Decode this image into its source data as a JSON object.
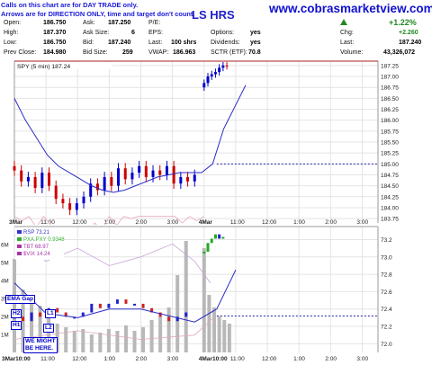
{
  "site": {
    "url": "www.cobrasmarketview.com"
  },
  "ticker_partial": "LS HRS",
  "notice": {
    "line1": "Calls on this chart are for DAY TRADE only.",
    "line2": "Arrows are for DIRECTION ONLY, time and target don't count."
  },
  "quote": {
    "open_label": "Open:",
    "open": "186.750",
    "high_label": "High:",
    "high": "187.370",
    "low_label": "Low:",
    "low": "186.750",
    "prev_close_label": "Prev Close:",
    "prev_close": "184.980",
    "ask_label": "Ask:",
    "ask": "187.250",
    "ask_size_label": "Ask Size:",
    "ask_size": "6",
    "bid_label": "Bid:",
    "bid": "187.240",
    "bid_size_label": "Bid Size:",
    "bid_size": "259",
    "pe_label": "P/E:",
    "pe": "",
    "eps_label": "EPS:",
    "eps": "",
    "last_label": "Last:",
    "last_size": "100 shrs",
    "vwap_label": "VWAP:",
    "vwap": "186.963",
    "options_label": "Options:",
    "options": "yes",
    "dividends_label": "Dividends:",
    "dividends": "yes",
    "sctr_label": "SCTR (ETF):",
    "sctr": "70.8",
    "pct_change": "+1.22%",
    "chg_label": "Chg:",
    "chg": "+2.260",
    "last2_label": "Last:",
    "last": "187.240",
    "volume_label": "Volume:",
    "volume": "43,326,072",
    "up_color": "#228822"
  },
  "chart_data": [
    {
      "type": "line",
      "legend": "SPY (5 min) 187.24",
      "y_ticks": [
        "187.25",
        "187.00",
        "186.75",
        "186.50",
        "186.25",
        "186.00",
        "185.75",
        "185.50",
        "185.25",
        "185.00",
        "184.75",
        "184.50",
        "184.25",
        "184.00",
        "183.75"
      ],
      "ylim": [
        183.65,
        187.35
      ],
      "x_ticks": [
        "3Mar",
        "11:00",
        "12:00",
        "1:00",
        "2:00",
        "3:00",
        "4Mar",
        "11:00",
        "12:00",
        "1:00",
        "2:00",
        "3:00"
      ],
      "time_day": [
        0,
        0.5,
        1,
        1.5,
        2,
        2.5,
        3,
        3.5,
        4,
        4.5,
        5,
        5.5,
        6
      ],
      "close_day1": [
        184.85,
        184.6,
        184.7,
        184.45,
        184.8,
        184.5,
        184.2,
        184.1,
        183.95,
        184.1,
        184.25,
        184.55,
        184.4,
        184.7,
        184.5,
        184.9,
        184.65,
        184.8,
        184.95,
        184.7,
        184.85,
        184.75,
        184.95,
        184.55,
        184.7,
        184.6,
        184.75
      ],
      "close_day2": [
        186.85,
        187.0,
        187.05,
        187.1,
        187.2,
        187.25,
        187.24
      ],
      "ma_series": [
        186.5,
        186.0,
        185.6,
        185.2,
        184.95,
        184.8,
        184.65,
        184.5,
        184.4,
        184.35,
        184.4,
        184.5,
        184.6,
        184.7,
        184.75,
        184.8,
        184.8,
        184.8,
        185.0,
        185.8,
        186.3,
        186.8
      ],
      "ref_level": 185.0,
      "colors": {
        "up": "#0000cc",
        "down": "#cc0000",
        "ma": "#2a2ac8",
        "band": "#e8a6b8"
      }
    },
    {
      "type": "line",
      "legend": [
        "RSP 73.21",
        "PXA.PXY 0.9348",
        "TBT 68.97",
        "$VIX 14.24"
      ],
      "legend_colors": [
        "#3333cc",
        "#33aa33",
        "#aa33aa",
        "#aa33aa"
      ],
      "y_ticks_right": [
        "73.2",
        "73.0",
        "72.8",
        "72.6",
        "72.4",
        "72.2",
        "72.0"
      ],
      "ylim_right": [
        71.9,
        73.35
      ],
      "y_ticks_left": [
        "6M",
        "5M",
        "4M",
        "3M",
        "2M",
        "1M"
      ],
      "ylim_left": [
        0,
        7
      ],
      "x_ticks": [
        "3Mar10:00",
        "11:00",
        "12:00",
        "1:00",
        "2:00",
        "3:00",
        "4Mar10:00",
        "11:00",
        "12:00",
        "1:00",
        "2:00",
        "3:00"
      ],
      "rsp_day1": [
        72.3,
        72.25,
        72.35,
        72.3,
        72.4,
        72.35,
        72.3,
        72.3,
        72.35,
        72.45,
        72.4,
        72.45,
        72.5,
        72.45,
        72.45,
        72.4,
        72.35,
        72.3,
        72.25,
        72.3,
        72.35
      ],
      "rsp_day2": [
        73.05,
        73.15,
        73.2,
        73.25,
        73.2,
        73.22
      ],
      "volume_day1": [
        5.2,
        3.5,
        3.0,
        2.6,
        2.2,
        1.6,
        1.4,
        1.2,
        1.3,
        1.0,
        1.1,
        1.3,
        1.2,
        1.5,
        1.2,
        1.4,
        1.8,
        2.0,
        2.5,
        4.3,
        6.2
      ],
      "volume_day2": [
        5.8,
        3.2,
        2.5,
        2.0,
        1.8,
        1.6
      ],
      "ref_level": 72.32,
      "annotations": [
        "EMA Gap",
        "H2",
        "L1",
        "H1",
        "L2",
        "WE MIGHT BE HERE."
      ]
    }
  ]
}
